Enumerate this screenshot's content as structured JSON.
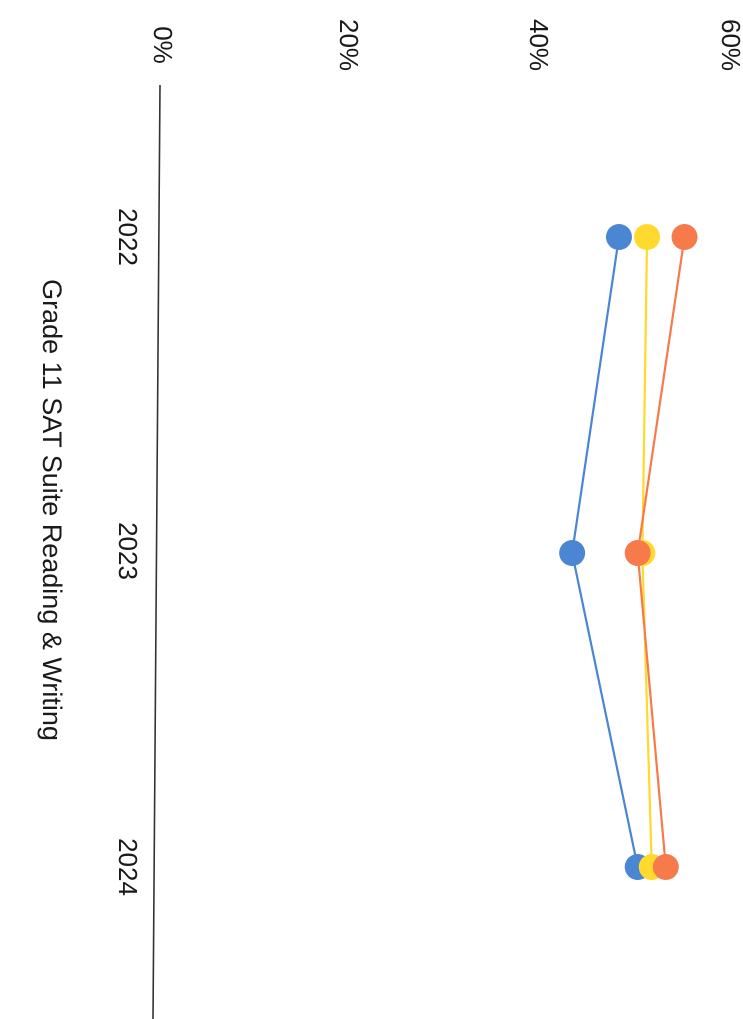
{
  "chart_data": {
    "type": "line",
    "title": "Grade 11 SAT Suite Reading & Writing",
    "categories": [
      "2022",
      "2023",
      "2024"
    ],
    "y_tick_labels": [
      "0%",
      "20%",
      "40%",
      "60%"
    ],
    "ylim": [
      0,
      60
    ],
    "grid": false,
    "legend": "none",
    "series": [
      {
        "color": "#4a86d1",
        "values": [
          49,
          44,
          51
        ]
      },
      {
        "color": "#ffd92e",
        "values": [
          52,
          51.5,
          52.5
        ]
      },
      {
        "color": "#f77a4a",
        "values": [
          56,
          51,
          54
        ]
      }
    ]
  }
}
